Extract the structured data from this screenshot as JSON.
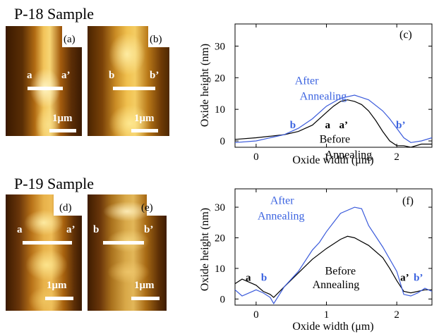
{
  "samples": [
    {
      "title": "P-18 Sample",
      "images": [
        {
          "panel": "(a)",
          "left_label": "a",
          "right_label": "a’",
          "scale": "1μm"
        },
        {
          "panel": "(b)",
          "left_label": "b",
          "right_label": "b’",
          "scale": "1μm"
        }
      ]
    },
    {
      "title": "P-19 Sample",
      "images": [
        {
          "panel": "(d)",
          "left_label": "a",
          "right_label": "a’",
          "scale": "1μm"
        },
        {
          "panel": "(e)",
          "left_label": "b",
          "right_label": "b’",
          "scale": "1μm"
        }
      ]
    }
  ],
  "colors": {
    "before": "#000000",
    "after": "#3b5bdb",
    "after_text": "#3b63e0"
  },
  "chart_data": [
    {
      "type": "line",
      "panel": "(c)",
      "xlabel": "Oxide width (μm)",
      "ylabel": "Oxide height (nm)",
      "xlim": [
        -0.3,
        2.5
      ],
      "ylim": [
        -2,
        37
      ],
      "xticks": [
        0,
        1,
        2
      ],
      "yticks": [
        0,
        10,
        20,
        30
      ],
      "grid": false,
      "series": [
        {
          "name": "Before Annealing",
          "color": "#000000",
          "x": [
            -0.3,
            0,
            0.2,
            0.4,
            0.6,
            0.8,
            1.0,
            1.1,
            1.2,
            1.3,
            1.4,
            1.5,
            1.6,
            1.7,
            1.8,
            1.9,
            2.0,
            2.1,
            2.2,
            2.35,
            2.5
          ],
          "y": [
            0.5,
            1,
            1.5,
            2,
            3,
            5,
            9,
            11,
            12.5,
            13,
            12.5,
            11.5,
            9.5,
            6.5,
            3,
            0,
            -1.5,
            -1.5,
            -2,
            -1,
            -1
          ]
        },
        {
          "name": "After Annealing",
          "color": "#3b5bdb",
          "x": [
            -0.3,
            0,
            0.2,
            0.4,
            0.6,
            0.8,
            1.0,
            1.2,
            1.4,
            1.6,
            1.8,
            1.9,
            2.0,
            2.1,
            2.2,
            2.35,
            2.5
          ],
          "y": [
            -0.5,
            0,
            1,
            2,
            4,
            7,
            11,
            13.5,
            14.5,
            13,
            9.5,
            7,
            4,
            1,
            -0.5,
            0,
            1
          ]
        }
      ],
      "annotations": [
        {
          "text": "After",
          "x": 0.55,
          "y": 18,
          "color": "#3b63e0"
        },
        {
          "text": "Annealing",
          "x": 0.62,
          "y": 13,
          "color": "#3b63e0"
        },
        {
          "text": "b",
          "x": 0.48,
          "y": 4,
          "color": "#3b63e0"
        },
        {
          "text": "a",
          "x": 0.98,
          "y": 4,
          "color": "#000000"
        },
        {
          "text": "a’",
          "x": 1.18,
          "y": 4,
          "color": "#000000"
        },
        {
          "text": "b’",
          "x": 1.99,
          "y": 4,
          "color": "#3b63e0"
        },
        {
          "text": "Before",
          "x": 0.9,
          "y": -0.5,
          "color": "#000000"
        },
        {
          "text": "Annealing",
          "x": 0.98,
          "y": -5.5,
          "color": "#000000"
        }
      ]
    },
    {
      "type": "line",
      "panel": "(f)",
      "xlabel": "Oxide width (μm)",
      "ylabel": "Oxide height (nm)",
      "xlim": [
        -0.3,
        2.5
      ],
      "ylim": [
        -2,
        36
      ],
      "xticks": [
        0,
        1,
        2
      ],
      "yticks": [
        0,
        10,
        20,
        30
      ],
      "grid": false,
      "series": [
        {
          "name": "Before Annealing",
          "color": "#000000",
          "x": [
            -0.3,
            -0.2,
            0,
            0.1,
            0.2,
            0.25,
            0.4,
            0.6,
            0.8,
            1.0,
            1.2,
            1.3,
            1.4,
            1.6,
            1.8,
            1.9,
            2.0,
            2.1,
            2.2,
            2.3,
            2.4,
            2.5
          ],
          "y": [
            5,
            6.5,
            4.5,
            2.5,
            1.5,
            0.5,
            4,
            8.5,
            13,
            16.5,
            19.5,
            20.5,
            20,
            17.5,
            13.5,
            10,
            6,
            2.5,
            2,
            2.5,
            3,
            3
          ]
        },
        {
          "name": "After Annealing",
          "color": "#3b5bdb",
          "x": [
            -0.3,
            -0.2,
            0,
            0.1,
            0.2,
            0.25,
            0.4,
            0.6,
            0.8,
            0.9,
            1.0,
            1.1,
            1.2,
            1.4,
            1.5,
            1.6,
            1.8,
            2.0,
            2.1,
            2.2,
            2.3,
            2.4,
            2.5
          ],
          "y": [
            3,
            1,
            3,
            2,
            0.5,
            -1.5,
            4,
            9,
            16,
            18.5,
            22,
            25,
            28,
            30,
            29.5,
            24,
            17,
            9,
            1.5,
            1,
            2,
            3.5,
            2.5
          ]
        }
      ],
      "annotations": [
        {
          "text": "After",
          "x": 0.2,
          "y": 31,
          "color": "#3b63e0"
        },
        {
          "text": "Annealing",
          "x": 0.02,
          "y": 26,
          "color": "#3b63e0"
        },
        {
          "text": "a",
          "x": -0.15,
          "y": 6,
          "color": "#000000"
        },
        {
          "text": "b",
          "x": 0.07,
          "y": 6,
          "color": "#3b63e0"
        },
        {
          "text": "Before",
          "x": 0.98,
          "y": 8,
          "color": "#000000"
        },
        {
          "text": "Annealing",
          "x": 0.8,
          "y": 3.5,
          "color": "#000000"
        },
        {
          "text": "a’",
          "x": 2.05,
          "y": 6,
          "color": "#000000"
        },
        {
          "text": "b’",
          "x": 2.24,
          "y": 6,
          "color": "#3b63e0"
        }
      ]
    }
  ]
}
